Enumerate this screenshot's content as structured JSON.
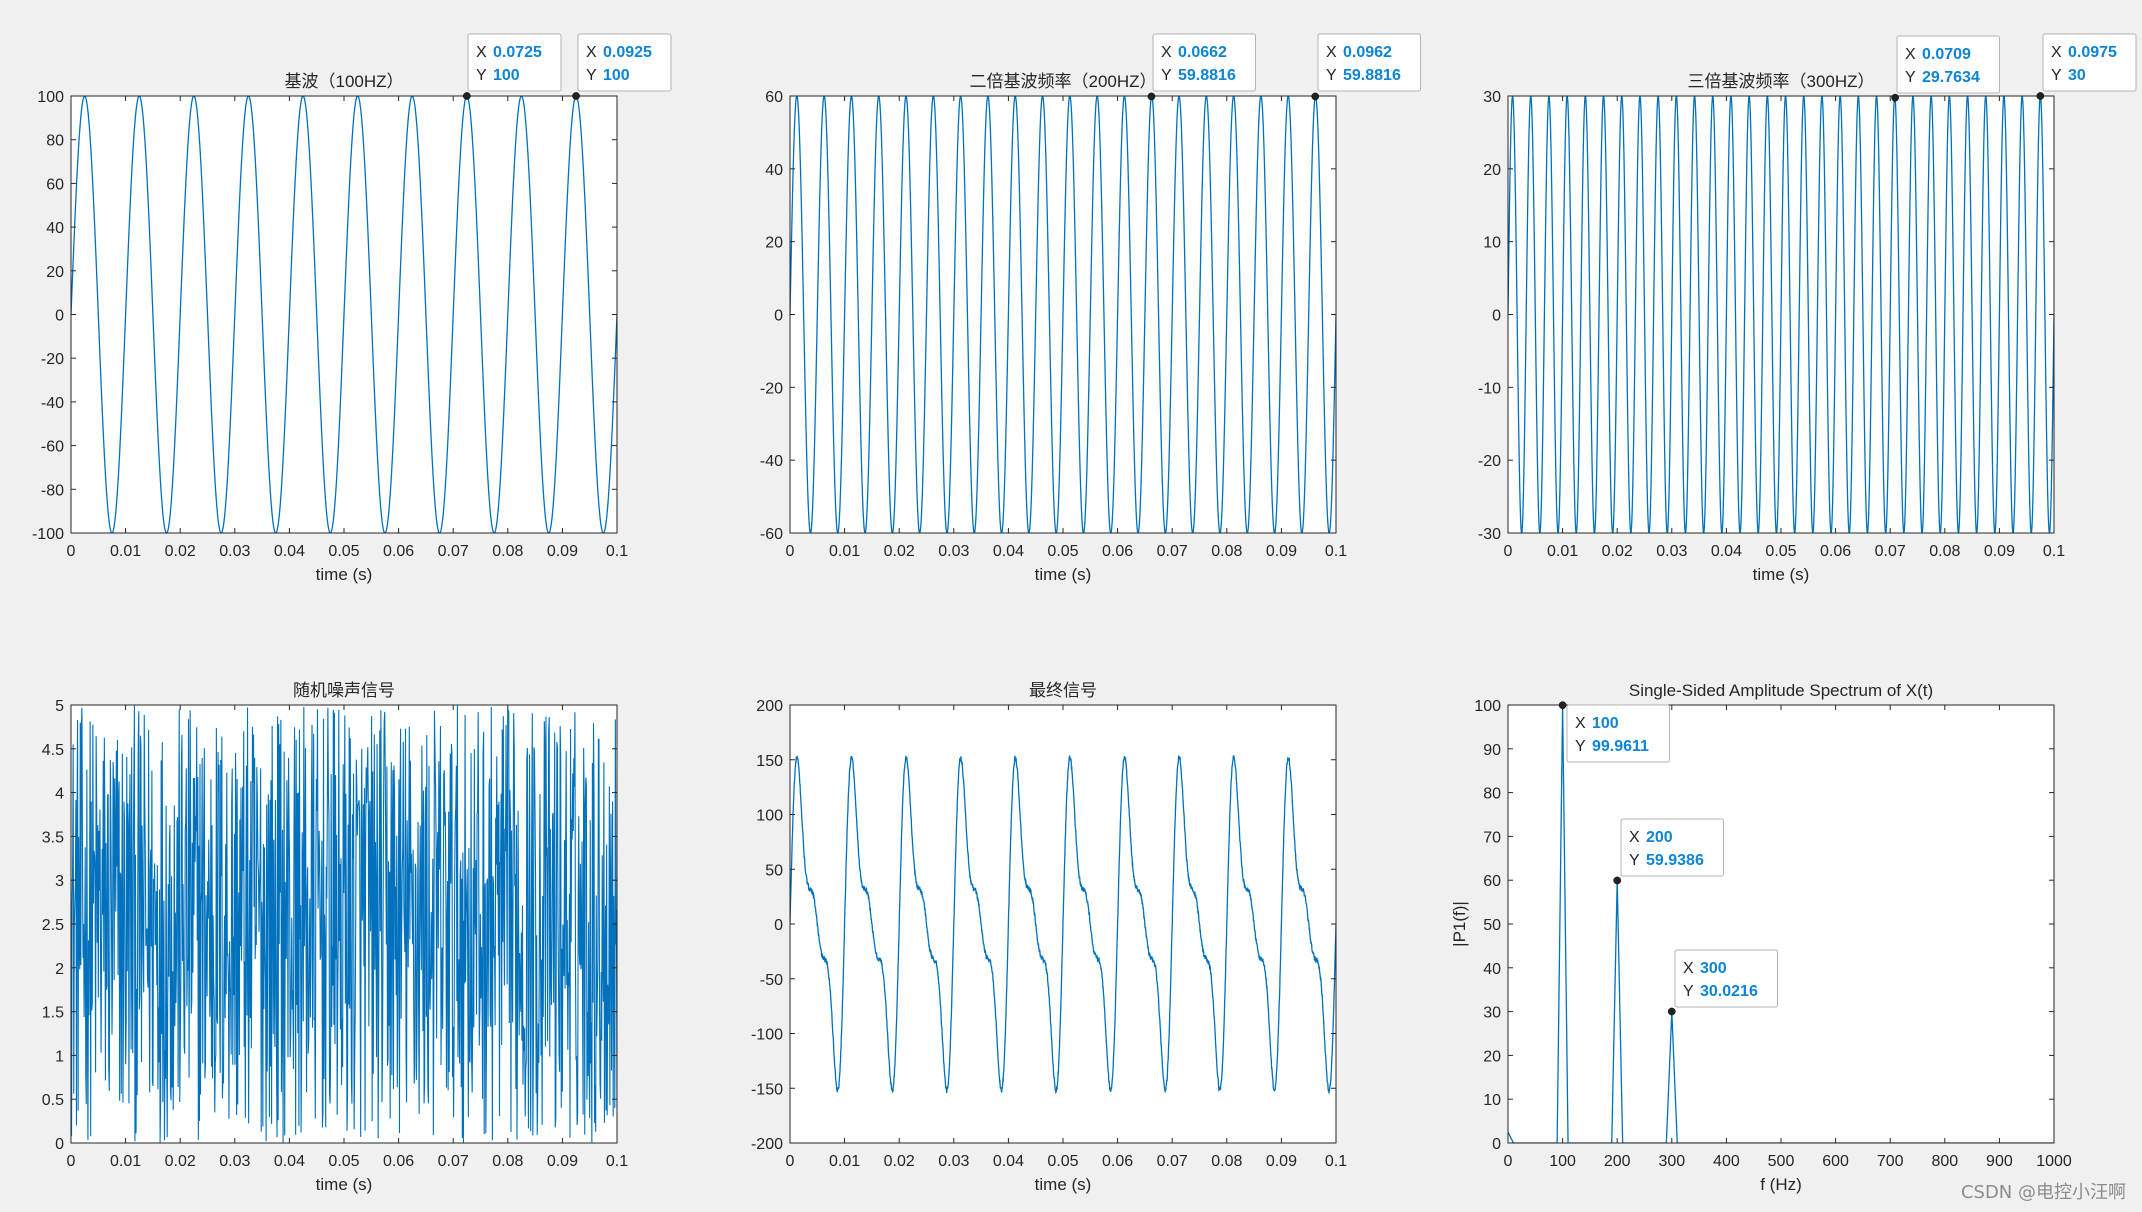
{
  "colors": {
    "line": "#0072bd",
    "axis": "#262626",
    "plot_bg": "#ffffff",
    "figure_bg": "#f0f0f0",
    "datatip_value": "#0e84d7"
  },
  "watermark": "CSDN @电控小汪啊",
  "chart_data": [
    {
      "id": "fundamental",
      "type": "line",
      "title": "基波（100HZ）",
      "xlabel": "time (s)",
      "ylabel": "",
      "xlim": [
        0,
        0.1
      ],
      "ylim": [
        -100,
        100
      ],
      "xticks": [
        0,
        0.01,
        0.02,
        0.03,
        0.04,
        0.05,
        0.06,
        0.07,
        0.08,
        0.09,
        0.1
      ],
      "yticks": [
        -100,
        -80,
        -60,
        -40,
        -20,
        0,
        20,
        40,
        60,
        80,
        100
      ],
      "series": [
        {
          "function": "sine",
          "amplitude": 100,
          "frequency_hz": 100,
          "phase_deg": 0
        }
      ],
      "datatips": [
        {
          "x_label": "X",
          "x": "0.0725",
          "y_label": "Y",
          "y": "100"
        },
        {
          "x_label": "X",
          "x": "0.0925",
          "y_label": "Y",
          "y": "100"
        }
      ]
    },
    {
      "id": "second-harmonic",
      "type": "line",
      "title": "二倍基波频率（200HZ）",
      "xlabel": "time (s)",
      "ylabel": "",
      "xlim": [
        0,
        0.1
      ],
      "ylim": [
        -60,
        60
      ],
      "xticks": [
        0,
        0.01,
        0.02,
        0.03,
        0.04,
        0.05,
        0.06,
        0.07,
        0.08,
        0.09,
        0.1
      ],
      "yticks": [
        -60,
        -40,
        -20,
        0,
        20,
        40,
        60
      ],
      "series": [
        {
          "function": "sine",
          "amplitude": 60,
          "frequency_hz": 200,
          "phase_deg": 0
        }
      ],
      "datatips": [
        {
          "x_label": "X",
          "x": "0.0662",
          "y_label": "Y",
          "y": "59.8816"
        },
        {
          "x_label": "X",
          "x": "0.0962",
          "y_label": "Y",
          "y": "59.8816"
        }
      ]
    },
    {
      "id": "third-harmonic",
      "type": "line",
      "title": "三倍基波频率（300HZ）",
      "xlabel": "time (s)",
      "ylabel": "",
      "xlim": [
        0,
        0.1
      ],
      "ylim": [
        -30,
        30
      ],
      "xticks": [
        0,
        0.01,
        0.02,
        0.03,
        0.04,
        0.05,
        0.06,
        0.07,
        0.08,
        0.09,
        0.1
      ],
      "yticks": [
        -30,
        -20,
        -10,
        0,
        10,
        20,
        30
      ],
      "series": [
        {
          "function": "sine",
          "amplitude": 30,
          "frequency_hz": 300,
          "phase_deg": 0
        }
      ],
      "datatips": [
        {
          "x_label": "X",
          "x": "0.0709",
          "y_label": "Y",
          "y": "29.7634"
        },
        {
          "x_label": "X",
          "x": "0.0975",
          "y_label": "Y",
          "y": "30"
        }
      ]
    },
    {
      "id": "random-noise",
      "type": "line",
      "title": "随机噪声信号",
      "xlabel": "time (s)",
      "ylabel": "",
      "xlim": [
        0,
        0.1
      ],
      "ylim": [
        0,
        5
      ],
      "xticks": [
        0,
        0.01,
        0.02,
        0.03,
        0.04,
        0.05,
        0.06,
        0.07,
        0.08,
        0.09,
        0.1
      ],
      "yticks": [
        0,
        0.5,
        1,
        1.5,
        2,
        2.5,
        3,
        3.5,
        4,
        4.5,
        5
      ],
      "series": [
        {
          "function": "uniform_noise",
          "min": 0,
          "max": 5,
          "samples": 1000
        }
      ],
      "datatips": []
    },
    {
      "id": "final-signal",
      "type": "line",
      "title": "最终信号",
      "xlabel": "time (s)",
      "ylabel": "",
      "xlim": [
        0,
        0.1
      ],
      "ylim": [
        -200,
        200
      ],
      "xticks": [
        0,
        0.01,
        0.02,
        0.03,
        0.04,
        0.05,
        0.06,
        0.07,
        0.08,
        0.09,
        0.1
      ],
      "yticks": [
        -200,
        -150,
        -100,
        -50,
        0,
        50,
        100,
        150,
        200
      ],
      "series": [
        {
          "function": "harmonic_sum",
          "components": [
            [
              100,
              100
            ],
            [
              60,
              200
            ],
            [
              30,
              300
            ]
          ],
          "noise_amplitude": 5
        }
      ],
      "datatips": []
    },
    {
      "id": "spectrum",
      "type": "line",
      "title": "Single-Sided Amplitude Spectrum of X(t)",
      "xlabel": "f (Hz)",
      "ylabel": "|P1(f)|",
      "xlim": [
        0,
        1000
      ],
      "ylim": [
        0,
        100
      ],
      "xticks": [
        0,
        100,
        200,
        300,
        400,
        500,
        600,
        700,
        800,
        900,
        1000
      ],
      "yticks": [
        0,
        10,
        20,
        30,
        40,
        50,
        60,
        70,
        80,
        90,
        100
      ],
      "series": [
        {
          "function": "spectrum",
          "x": [
            0,
            10,
            90,
            100,
            110,
            190,
            200,
            210,
            290,
            300,
            310,
            1000
          ],
          "y": [
            2.5,
            0,
            0,
            99.96,
            0,
            0,
            59.94,
            0,
            0,
            30.02,
            0,
            0
          ]
        }
      ],
      "datatips": [
        {
          "x_label": "X",
          "x": "100",
          "y_label": "Y",
          "y": "99.9611"
        },
        {
          "x_label": "X",
          "x": "200",
          "y_label": "Y",
          "y": "59.9386"
        },
        {
          "x_label": "X",
          "x": "300",
          "y_label": "Y",
          "y": "30.0216"
        }
      ]
    }
  ]
}
